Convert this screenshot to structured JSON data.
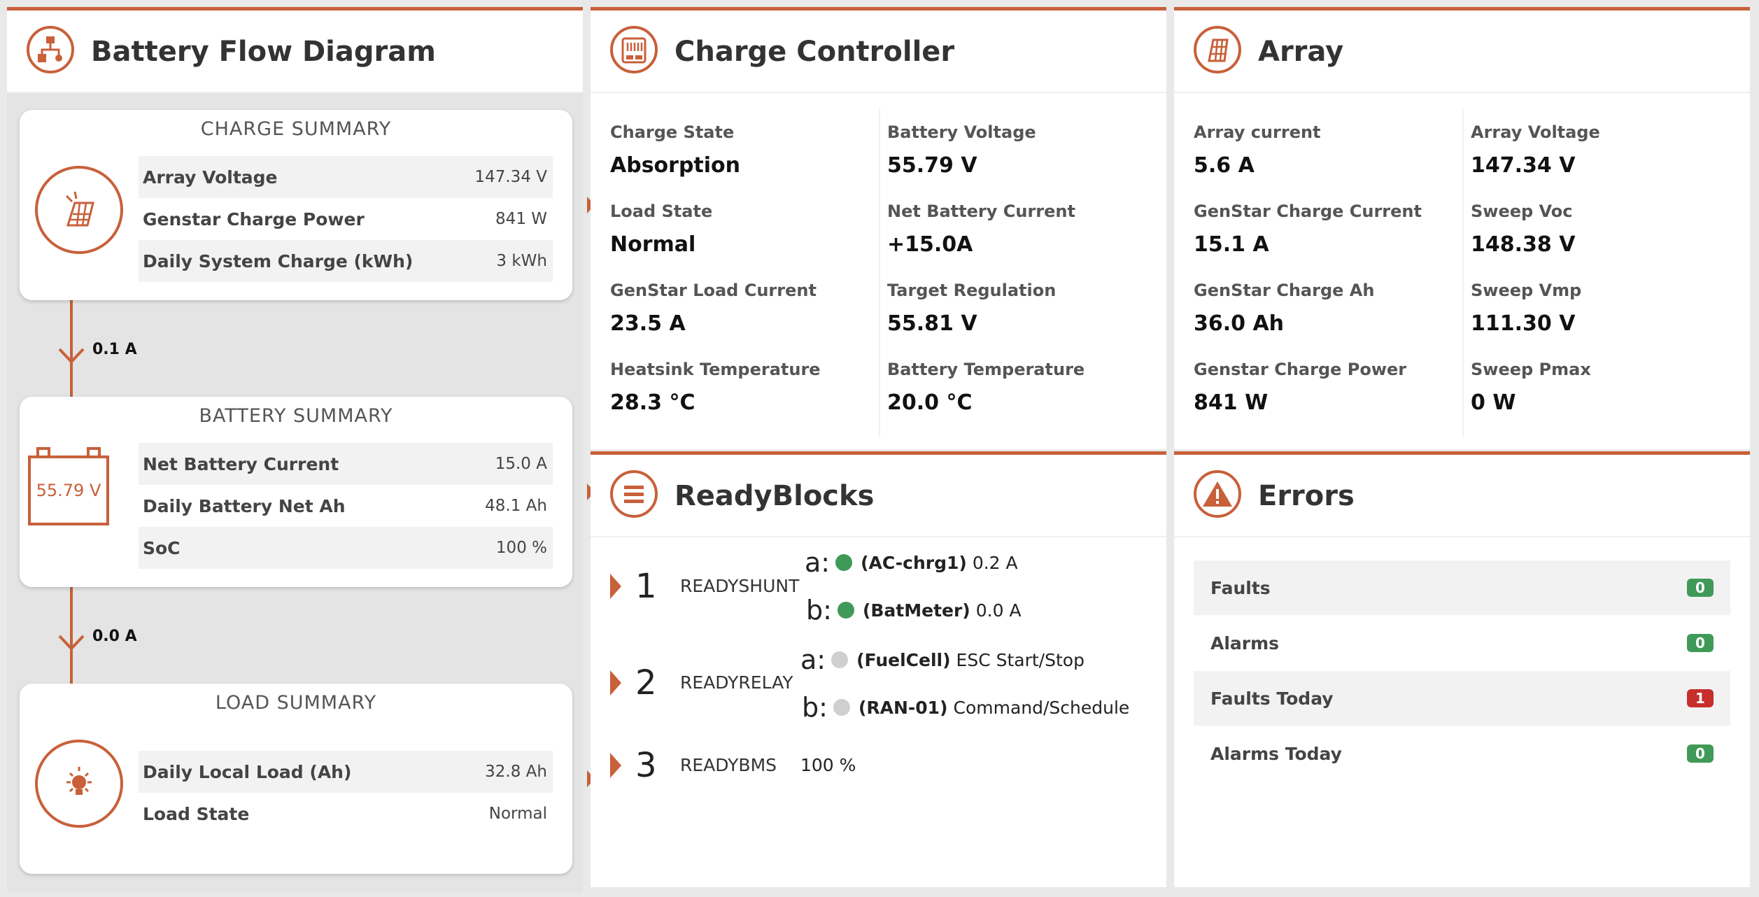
{
  "colors": {
    "accent": "#c8603a",
    "ok": "#3f9a57",
    "error": "#c62f2c",
    "inactive": "#cfcfcf"
  },
  "flow": {
    "title": "Battery Flow Diagram",
    "icon": "flow-diagram-icon",
    "charge": {
      "title": "CHARGE SUMMARY",
      "icon": "solar-panel-icon",
      "rows": [
        {
          "label": "Array Voltage",
          "value": "147.34 V"
        },
        {
          "label": "Genstar Charge Power",
          "value": "841 W"
        },
        {
          "label": "Daily System Charge (kWh)",
          "value": "3 kWh"
        }
      ]
    },
    "flow1": "0.1 A",
    "battery": {
      "title": "BATTERY SUMMARY",
      "voltage": "55.79 V",
      "rows": [
        {
          "label": "Net Battery Current",
          "value": "15.0 A"
        },
        {
          "label": "Daily Battery Net Ah",
          "value": "48.1 Ah"
        },
        {
          "label": "SoC",
          "value": "100 %"
        }
      ]
    },
    "flow2": "0.0 A",
    "load": {
      "title": "LOAD SUMMARY",
      "icon": "light-bulb-icon",
      "rows": [
        {
          "label": "Daily Local Load (Ah)",
          "value": "32.8 Ah"
        },
        {
          "label": "Load State",
          "value": "Normal"
        }
      ]
    }
  },
  "controller": {
    "title": "Charge Controller",
    "icon": "charge-controller-icon",
    "fields": [
      {
        "label": "Charge State",
        "value": "Absorption"
      },
      {
        "label": "Battery Voltage",
        "value": "55.79 V"
      },
      {
        "label": "Load State",
        "value": "Normal"
      },
      {
        "label": "Net Battery Current",
        "value": "+15.0A"
      },
      {
        "label": "GenStar Load Current",
        "value": "23.5 A"
      },
      {
        "label": "Target Regulation",
        "value": "55.81 V"
      },
      {
        "label": "Heatsink Temperature",
        "value": "28.3 °C"
      },
      {
        "label": "Battery Temperature",
        "value": "20.0 °C"
      }
    ]
  },
  "array": {
    "title": "Array",
    "icon": "solar-array-icon",
    "fields": [
      {
        "label": "Array current",
        "value": "5.6 A"
      },
      {
        "label": "Array Voltage",
        "value": "147.34 V"
      },
      {
        "label": "GenStar Charge Current",
        "value": "15.1 A"
      },
      {
        "label": "Sweep Voc",
        "value": "148.38 V"
      },
      {
        "label": "GenStar Charge Ah",
        "value": "36.0 Ah"
      },
      {
        "label": "Sweep Vmp",
        "value": "111.30 V"
      },
      {
        "label": "Genstar Charge Power",
        "value": "841 W"
      },
      {
        "label": "Sweep Pmax",
        "value": "0 W"
      }
    ]
  },
  "readyblocks": {
    "title": "ReadyBlocks",
    "icon": "menu-list-icon",
    "blocks": [
      {
        "num": "1",
        "name": "READYSHUNT",
        "channels": [
          {
            "letter": "a:",
            "status": "on",
            "tag": "(AC-chrg1)",
            "text": "0.2 A"
          },
          {
            "letter": "b:",
            "status": "on",
            "tag": "(BatMeter)",
            "text": "0.0 A"
          }
        ]
      },
      {
        "num": "2",
        "name": "READYRELAY",
        "channels": [
          {
            "letter": "a:",
            "status": "off",
            "tag": "(FuelCell)",
            "text": "ESC Start/Stop"
          },
          {
            "letter": "b:",
            "status": "off",
            "tag": "(RAN-01)",
            "text": "Command/Schedule"
          }
        ]
      },
      {
        "num": "3",
        "name": "READYBMS",
        "value": "100 %"
      }
    ]
  },
  "errors": {
    "title": "Errors",
    "icon": "warning-icon",
    "rows": [
      {
        "label": "Faults",
        "count": "0",
        "status": "ok"
      },
      {
        "label": "Alarms",
        "count": "0",
        "status": "ok"
      },
      {
        "label": "Faults Today",
        "count": "1",
        "status": "error"
      },
      {
        "label": "Alarms Today",
        "count": "0",
        "status": "ok"
      }
    ]
  }
}
